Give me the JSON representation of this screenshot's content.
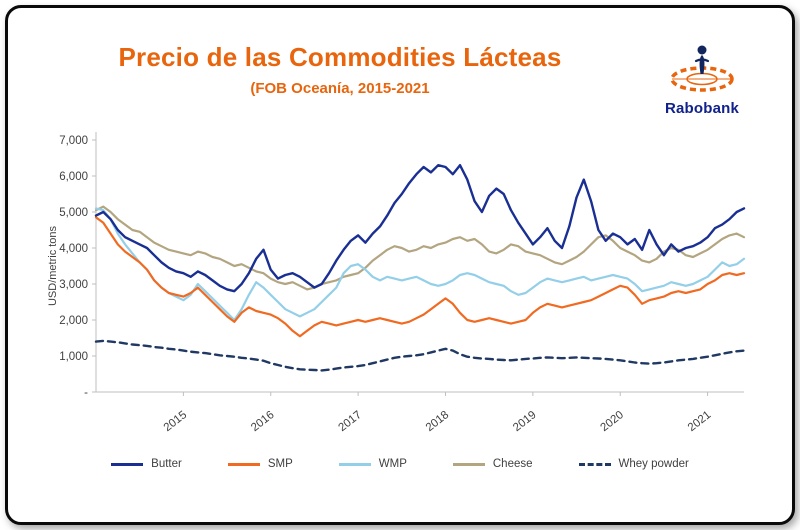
{
  "header": {
    "title": "Precio de las Commodities Lácteas",
    "subtitle": "(FOB Oceanía, 2015-2021"
  },
  "logo": {
    "text": "Rabobank"
  },
  "chart_data": {
    "type": "line",
    "title": "Precio de las Commodities Lácteas (FOB Oceanía, 2015-2021)",
    "ylabel": "USD/metric tons",
    "ylim": [
      0,
      7000
    ],
    "y_ticks": [
      0,
      1000,
      2000,
      3000,
      4000,
      5000,
      6000,
      7000
    ],
    "y_tick_labels": [
      "-",
      "1,000",
      "2,000",
      "3,000",
      "4,000",
      "5,000",
      "6,000",
      "7,000"
    ],
    "x_tick_years": [
      2015,
      2016,
      2017,
      2018,
      2019,
      2020,
      2021
    ],
    "x_start": 2014.0,
    "points_per_year": 12,
    "grid": false,
    "legend_position": "bottom",
    "draw_order": [
      3,
      2,
      1,
      0,
      4
    ],
    "series": [
      {
        "name": "Butter",
        "color": "#1A2F93",
        "dash": null,
        "width": 2.4,
        "values": [
          4900,
          5000,
          4800,
          4500,
          4300,
          4200,
          4100,
          4000,
          3800,
          3600,
          3450,
          3350,
          3300,
          3200,
          3350,
          3250,
          3100,
          2950,
          2850,
          2800,
          3000,
          3300,
          3700,
          3950,
          3400,
          3150,
          3250,
          3300,
          3200,
          3050,
          2900,
          3000,
          3300,
          3650,
          3950,
          4200,
          4350,
          4150,
          4400,
          4600,
          4900,
          5250,
          5500,
          5800,
          6050,
          6250,
          6100,
          6300,
          6250,
          6050,
          6300,
          5900,
          5300,
          5000,
          5450,
          5650,
          5500,
          5050,
          4700,
          4400,
          4100,
          4300,
          4550,
          4200,
          4000,
          4600,
          5400,
          5900,
          5300,
          4500,
          4200,
          4400,
          4300,
          4100,
          4250,
          3950,
          4500,
          4100,
          3800,
          4100,
          3900,
          4000,
          4050,
          4150,
          4300,
          4550,
          4650,
          4800,
          5000,
          5100
        ]
      },
      {
        "name": "SMP",
        "color": "#F06A21",
        "dash": null,
        "width": 2.2,
        "values": [
          4850,
          4700,
          4400,
          4100,
          3900,
          3750,
          3600,
          3400,
          3100,
          2900,
          2750,
          2700,
          2650,
          2750,
          2900,
          2700,
          2500,
          2300,
          2100,
          1950,
          2200,
          2350,
          2250,
          2200,
          2150,
          2050,
          1900,
          1700,
          1550,
          1700,
          1850,
          1950,
          1900,
          1850,
          1900,
          1950,
          2000,
          1950,
          2000,
          2050,
          2000,
          1950,
          1900,
          1950,
          2050,
          2150,
          2300,
          2450,
          2600,
          2450,
          2200,
          2000,
          1950,
          2000,
          2050,
          2000,
          1950,
          1900,
          1950,
          2000,
          2200,
          2350,
          2450,
          2400,
          2350,
          2400,
          2450,
          2500,
          2550,
          2650,
          2750,
          2850,
          2950,
          2900,
          2700,
          2450,
          2550,
          2600,
          2650,
          2750,
          2800,
          2750,
          2800,
          2850,
          3000,
          3100,
          3250,
          3300,
          3250,
          3300
        ]
      },
      {
        "name": "WMP",
        "color": "#93CFE8",
        "dash": null,
        "width": 2.2,
        "values": [
          5100,
          5050,
          4800,
          4400,
          4100,
          3850,
          3600,
          3400,
          3100,
          2900,
          2750,
          2650,
          2550,
          2700,
          3000,
          2800,
          2600,
          2400,
          2200,
          2000,
          2300,
          2700,
          3050,
          2900,
          2700,
          2500,
          2300,
          2200,
          2100,
          2200,
          2300,
          2500,
          2700,
          2900,
          3300,
          3500,
          3550,
          3400,
          3200,
          3100,
          3200,
          3150,
          3100,
          3150,
          3200,
          3100,
          3000,
          2950,
          3000,
          3100,
          3250,
          3300,
          3250,
          3150,
          3050,
          3000,
          2950,
          2800,
          2700,
          2750,
          2900,
          3050,
          3150,
          3100,
          3050,
          3100,
          3150,
          3200,
          3100,
          3150,
          3200,
          3250,
          3200,
          3150,
          3000,
          2800,
          2850,
          2900,
          2950,
          3050,
          3000,
          2950,
          3000,
          3100,
          3200,
          3400,
          3600,
          3500,
          3550,
          3700
        ]
      },
      {
        "name": "Cheese",
        "color": "#B3A580",
        "dash": null,
        "width": 2.2,
        "values": [
          5050,
          5150,
          5000,
          4800,
          4650,
          4500,
          4450,
          4300,
          4150,
          4050,
          3950,
          3900,
          3850,
          3800,
          3900,
          3850,
          3750,
          3700,
          3600,
          3500,
          3550,
          3450,
          3350,
          3300,
          3150,
          3050,
          3000,
          3050,
          2950,
          2850,
          2900,
          3000,
          3050,
          3100,
          3200,
          3250,
          3300,
          3450,
          3650,
          3800,
          3950,
          4050,
          4000,
          3900,
          3950,
          4050,
          4000,
          4100,
          4150,
          4250,
          4300,
          4200,
          4250,
          4100,
          3900,
          3850,
          3950,
          4100,
          4050,
          3900,
          3850,
          3800,
          3700,
          3600,
          3550,
          3650,
          3750,
          3900,
          4100,
          4300,
          4350,
          4200,
          4000,
          3900,
          3800,
          3650,
          3600,
          3700,
          3900,
          4000,
          3950,
          3800,
          3750,
          3850,
          3950,
          4100,
          4250,
          4350,
          4400,
          4300
        ]
      },
      {
        "name": "Whey powder",
        "color": "#1F3864",
        "dash": "7 5",
        "width": 2.4,
        "values": [
          1400,
          1420,
          1400,
          1380,
          1350,
          1320,
          1300,
          1280,
          1250,
          1230,
          1200,
          1180,
          1150,
          1120,
          1100,
          1080,
          1050,
          1020,
          1000,
          980,
          950,
          930,
          900,
          870,
          800,
          750,
          700,
          660,
          630,
          620,
          610,
          600,
          620,
          650,
          680,
          700,
          720,
          750,
          800,
          850,
          900,
          950,
          980,
          1000,
          1020,
          1050,
          1100,
          1150,
          1200,
          1150,
          1050,
          980,
          950,
          930,
          920,
          900,
          890,
          880,
          900,
          920,
          930,
          950,
          960,
          950,
          940,
          950,
          960,
          950,
          940,
          930,
          920,
          900,
          880,
          850,
          820,
          800,
          790,
          800,
          820,
          850,
          880,
          900,
          920,
          950,
          980,
          1020,
          1060,
          1100,
          1130,
          1150
        ]
      }
    ]
  }
}
